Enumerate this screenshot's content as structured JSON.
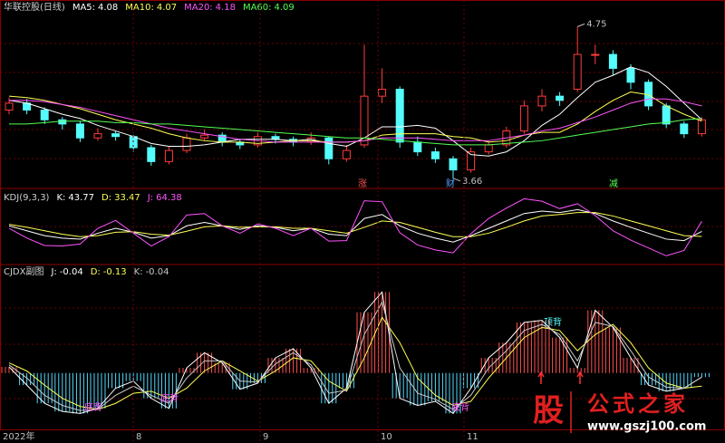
{
  "chart_data": [
    {
      "type": "candlestick",
      "title": "华联控股(日线)",
      "up_color": "#ff3c3c",
      "down_color": "#54fcfc",
      "ylim": [
        3.6,
        4.85
      ],
      "ohlc": [
        [
          4.15,
          4.24,
          4.12,
          4.2
        ],
        [
          4.2,
          4.23,
          4.12,
          4.15
        ],
        [
          4.15,
          4.17,
          4.05,
          4.08
        ],
        [
          4.08,
          4.1,
          4.01,
          4.05
        ],
        [
          4.05,
          4.07,
          3.92,
          3.95
        ],
        [
          3.95,
          4.02,
          3.93,
          3.98
        ],
        [
          3.98,
          4.0,
          3.93,
          3.96
        ],
        [
          3.96,
          3.97,
          3.85,
          3.88
        ],
        [
          3.88,
          3.9,
          3.75,
          3.78
        ],
        [
          3.78,
          3.89,
          3.76,
          3.86
        ],
        [
          3.86,
          3.98,
          3.84,
          3.95
        ],
        [
          3.95,
          4.01,
          3.93,
          3.97
        ],
        [
          3.97,
          3.99,
          3.89,
          3.92
        ],
        [
          3.92,
          3.94,
          3.87,
          3.9
        ],
        [
          3.9,
          3.99,
          3.88,
          3.96
        ],
        [
          3.96,
          3.98,
          3.91,
          3.94
        ],
        [
          3.94,
          3.96,
          3.89,
          3.92
        ],
        [
          3.92,
          3.99,
          3.9,
          3.95
        ],
        [
          3.95,
          3.96,
          3.76,
          3.8
        ],
        [
          3.8,
          3.9,
          3.78,
          3.86
        ],
        [
          3.9,
          4.62,
          3.88,
          4.25
        ],
        [
          4.25,
          4.45,
          4.2,
          4.3
        ],
        [
          4.3,
          4.32,
          3.88,
          3.92
        ],
        [
          3.92,
          3.96,
          3.82,
          3.85
        ],
        [
          3.85,
          3.88,
          3.77,
          3.8
        ],
        [
          3.8,
          3.82,
          3.66,
          3.72
        ],
        [
          3.72,
          3.88,
          3.7,
          3.85
        ],
        [
          3.85,
          3.93,
          3.83,
          3.9
        ],
        [
          3.9,
          4.03,
          3.88,
          4.0
        ],
        [
          4.0,
          4.22,
          3.98,
          4.18
        ],
        [
          4.18,
          4.3,
          4.14,
          4.25
        ],
        [
          4.25,
          4.28,
          4.18,
          4.22
        ],
        [
          4.3,
          4.75,
          4.28,
          4.55
        ],
        [
          4.55,
          4.62,
          4.48,
          4.55
        ],
        [
          4.55,
          4.58,
          4.4,
          4.45
        ],
        [
          4.45,
          4.48,
          4.3,
          4.35
        ],
        [
          4.35,
          4.37,
          4.15,
          4.18
        ],
        [
          4.18,
          4.2,
          4.02,
          4.05
        ],
        [
          4.05,
          4.07,
          3.95,
          3.98
        ],
        [
          3.98,
          4.1,
          3.96,
          4.08
        ]
      ],
      "series": [
        {
          "name": "MA5:",
          "color": "#ffffff",
          "values": [
            4.22,
            4.2,
            4.16,
            4.12,
            4.09,
            4.04,
            4.0,
            3.96,
            3.91,
            3.89,
            3.89,
            3.9,
            3.92,
            3.94,
            3.94,
            3.94,
            3.93,
            3.94,
            3.91,
            3.89,
            3.95,
            4.03,
            4.03,
            4.04,
            4.02,
            3.93,
            3.83,
            3.82,
            3.85,
            3.93,
            4.04,
            4.12,
            4.24,
            4.35,
            4.4,
            4.46,
            4.42,
            4.32,
            4.2,
            4.08
          ]
        },
        {
          "name": "MA10:",
          "color": "#ffff54",
          "values": [
            4.25,
            4.24,
            4.22,
            4.19,
            4.16,
            4.12,
            4.08,
            4.05,
            4.02,
            3.98,
            3.95,
            3.93,
            3.92,
            3.92,
            3.91,
            3.92,
            3.93,
            3.93,
            3.92,
            3.92,
            3.93,
            3.97,
            3.98,
            3.98,
            3.98,
            3.96,
            3.95,
            3.92,
            3.93,
            3.97,
            3.99,
            3.99,
            4.05,
            4.14,
            4.22,
            4.28,
            4.26,
            4.18,
            4.12,
            4.07
          ]
        },
        {
          "name": "MA20:",
          "color": "#ff54ff",
          "values": [
            4.22,
            4.22,
            4.21,
            4.19,
            4.17,
            4.14,
            4.11,
            4.08,
            4.05,
            4.02,
            4.0,
            3.98,
            3.96,
            3.94,
            3.93,
            3.92,
            3.92,
            3.92,
            3.92,
            3.92,
            3.93,
            3.95,
            3.95,
            3.95,
            3.94,
            3.93,
            3.93,
            3.93,
            3.95,
            3.97,
            4.0,
            4.02,
            4.06,
            4.1,
            4.15,
            4.2,
            4.23,
            4.23,
            4.21,
            4.18
          ]
        },
        {
          "name": "MA60:",
          "color": "#54ff54",
          "values": [
            4.05,
            4.05,
            4.06,
            4.07,
            4.07,
            4.07,
            4.06,
            4.06,
            4.05,
            4.05,
            4.04,
            4.03,
            4.02,
            4.01,
            4.0,
            3.99,
            3.98,
            3.97,
            3.96,
            3.95,
            3.95,
            3.94,
            3.93,
            3.92,
            3.91,
            3.9,
            3.9,
            3.9,
            3.91,
            3.92,
            3.93,
            3.95,
            3.97,
            3.99,
            4.01,
            4.03,
            4.05,
            4.06,
            4.08,
            4.09
          ]
        }
      ],
      "markers": [
        "涨",
        "财",
        "减"
      ]
    },
    {
      "type": "line",
      "title": "KDJ(9,3,3)",
      "ylim": [
        -20,
        120
      ],
      "series": [
        {
          "name": "K:",
          "color": "#ffffff",
          "values": [
            55,
            45,
            35,
            30,
            28,
            40,
            50,
            42,
            30,
            35,
            55,
            62,
            55,
            48,
            55,
            52,
            45,
            50,
            38,
            35,
            70,
            78,
            55,
            40,
            30,
            22,
            35,
            50,
            65,
            80,
            85,
            82,
            88,
            80,
            65,
            52,
            40,
            28,
            25,
            43.77
          ]
        },
        {
          "name": "D:",
          "color": "#ffff54",
          "values": [
            58,
            52,
            45,
            38,
            33,
            35,
            42,
            43,
            38,
            36,
            44,
            53,
            55,
            52,
            53,
            53,
            50,
            50,
            45,
            40,
            52,
            65,
            62,
            52,
            42,
            33,
            33,
            40,
            52,
            65,
            75,
            78,
            82,
            82,
            75,
            65,
            55,
            45,
            35,
            33.47
          ]
        },
        {
          "name": "J:",
          "color": "#ff54ff",
          "values": [
            50,
            30,
            15,
            14,
            18,
            50,
            66,
            40,
            14,
            33,
            77,
            80,
            55,
            40,
            59,
            50,
            35,
            50,
            24,
            25,
            106,
            104,
            41,
            16,
            6,
            0,
            39,
            70,
            91,
            110,
            105,
            90,
            100,
            76,
            45,
            26,
            10,
            -6,
            5,
            64.38
          ]
        }
      ]
    },
    {
      "type": "line",
      "title": "CJDX副图",
      "ylim": [
        -0.45,
        1.0
      ],
      "histogram": true,
      "pos_color": "#ff5050",
      "neg_color": "#54d8fc",
      "series": [
        {
          "name": "J:",
          "color": "#ffffff",
          "values": [
            0.06,
            -0.12,
            -0.3,
            -0.38,
            -0.4,
            -0.35,
            -0.15,
            -0.08,
            -0.25,
            -0.35,
            0.05,
            0.2,
            0.1,
            -0.16,
            -0.1,
            0.15,
            0.24,
            0.05,
            -0.3,
            -0.15,
            0.6,
            0.8,
            -0.25,
            -0.32,
            -0.28,
            -0.4,
            -0.15,
            0.15,
            0.3,
            0.5,
            0.52,
            0.35,
            0.05,
            0.62,
            0.45,
            0.15,
            -0.12,
            -0.18,
            -0.15,
            -0.04
          ]
        },
        {
          "name": "D:",
          "color": "#ffff54",
          "values": [
            0.1,
            0.02,
            -0.12,
            -0.25,
            -0.33,
            -0.36,
            -0.3,
            -0.2,
            -0.18,
            -0.25,
            -0.15,
            0.02,
            0.12,
            0.02,
            -0.08,
            0.02,
            0.15,
            0.12,
            -0.08,
            -0.18,
            0.15,
            0.55,
            0.3,
            -0.05,
            -0.22,
            -0.32,
            -0.28,
            -0.05,
            0.15,
            0.35,
            0.45,
            0.42,
            0.22,
            0.38,
            0.48,
            0.3,
            0.05,
            -0.1,
            -0.15,
            -0.13
          ]
        },
        {
          "name": "K:",
          "color": "#c8c8c8",
          "values": [
            0.08,
            -0.05,
            -0.22,
            -0.32,
            -0.37,
            -0.36,
            -0.22,
            -0.13,
            -0.22,
            -0.3,
            -0.05,
            0.12,
            0.12,
            -0.08,
            -0.09,
            0.09,
            0.2,
            0.08,
            -0.2,
            -0.17,
            0.38,
            0.7,
            0.05,
            -0.2,
            -0.26,
            -0.36,
            -0.22,
            0.05,
            0.22,
            0.42,
            0.48,
            0.38,
            0.12,
            0.5,
            0.46,
            0.22,
            -0.04,
            -0.14,
            -0.15,
            -0.04
          ]
        }
      ],
      "signals": [
        "底背",
        "底背",
        "底背",
        "顶背"
      ]
    }
  ],
  "x_labels": [
    "2022年",
    "8",
    "9",
    "10",
    "11"
  ],
  "watermark": {
    "logo": "股",
    "name": "公式之家",
    "url": "www.gszj100.com"
  }
}
